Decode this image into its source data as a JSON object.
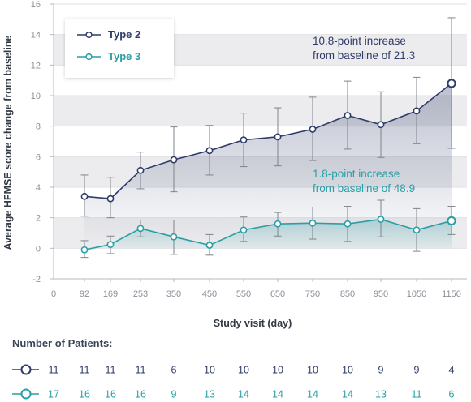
{
  "chart_data": {
    "type": "line",
    "xlabel": "Study visit (day)",
    "ylabel": "Average HFMSE score change from baseline",
    "ylim": [
      -2,
      16
    ],
    "yticks": [
      -2,
      0,
      2,
      4,
      6,
      8,
      10,
      12,
      14,
      16
    ],
    "x_origin_label": "0",
    "categories": [
      "92",
      "169",
      "253",
      "350",
      "450",
      "550",
      "650",
      "750",
      "850",
      "950",
      "1050",
      "1150"
    ],
    "grid": "alternating horizontal bands",
    "legend": {
      "placement": "top-left"
    },
    "series": [
      {
        "name": "Type 2",
        "color": "#2f3b68",
        "values": [
          3.4,
          3.25,
          5.1,
          5.8,
          6.4,
          7.1,
          7.3,
          7.8,
          8.7,
          8.1,
          9.0,
          10.8
        ],
        "error_low": [
          2.1,
          2.0,
          3.9,
          3.7,
          4.8,
          5.35,
          5.4,
          5.75,
          6.5,
          5.95,
          6.85,
          6.55
        ],
        "error_high": [
          4.8,
          4.65,
          6.3,
          7.95,
          8.05,
          8.85,
          9.2,
          9.9,
          10.95,
          10.25,
          11.2,
          15.1
        ]
      },
      {
        "name": "Type 3",
        "color": "#2a9ea5",
        "values": [
          -0.1,
          0.25,
          1.3,
          0.75,
          0.2,
          1.2,
          1.6,
          1.65,
          1.6,
          1.9,
          1.2,
          1.8
        ],
        "error_low": [
          -0.6,
          -0.35,
          0.75,
          -0.4,
          -0.45,
          0.45,
          0.8,
          0.6,
          0.45,
          0.75,
          -0.2,
          0.9
        ],
        "error_high": [
          0.5,
          0.8,
          1.85,
          1.85,
          0.9,
          2.05,
          2.35,
          2.7,
          2.75,
          3.15,
          2.6,
          2.75
        ]
      }
    ],
    "annotations": [
      {
        "series": "Type 2",
        "lines": [
          "10.8-point increase",
          "from baseline of 21.3"
        ]
      },
      {
        "series": "Type 3",
        "lines": [
          "1.8-point increase",
          "from baseline of 48.9"
        ]
      }
    ]
  },
  "patients": {
    "title": "Number of Patients:",
    "rows": [
      {
        "series": "Type 2",
        "color": "#2f3b68",
        "counts": [
          "11",
          "11",
          "11",
          "11",
          "6",
          "10",
          "10",
          "10",
          "10",
          "10",
          "9",
          "9",
          "4"
        ]
      },
      {
        "series": "Type 3",
        "color": "#2a9ea5",
        "counts": [
          "17",
          "16",
          "16",
          "16",
          "9",
          "13",
          "14",
          "14",
          "14",
          "14",
          "13",
          "11",
          "6"
        ]
      }
    ]
  }
}
